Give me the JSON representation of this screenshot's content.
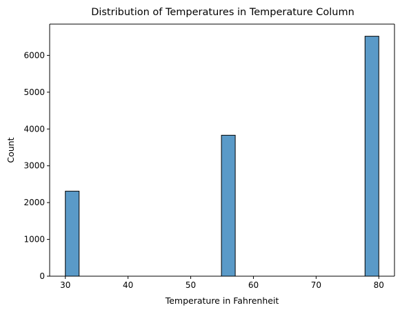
{
  "chart_data": {
    "type": "bar",
    "title": "Distribution of Temperatures in Temperature Column",
    "xlabel": "Temperature in Fahrenheit",
    "ylabel": "Count",
    "xlim": [
      27.5,
      82.5
    ],
    "ylim": [
      0,
      6850
    ],
    "xticks": [
      30,
      40,
      50,
      60,
      70,
      80
    ],
    "yticks": [
      0,
      1000,
      2000,
      3000,
      4000,
      5000,
      6000
    ],
    "bins": [
      {
        "x0": 30.0,
        "x1": 32.2,
        "count": 2310
      },
      {
        "x0": 54.9,
        "x1": 57.1,
        "count": 3830
      },
      {
        "x0": 77.8,
        "x1": 80.0,
        "count": 6520
      }
    ],
    "grid": false,
    "colors": {
      "bar_fill": "#5a9ac8",
      "bar_edge": "#000000"
    }
  }
}
